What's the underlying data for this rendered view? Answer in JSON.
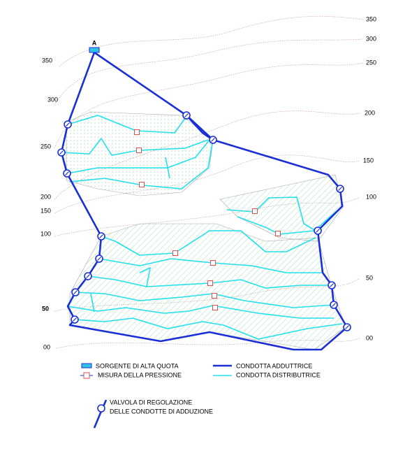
{
  "source_label": "A",
  "contours_left": [
    "350",
    "300",
    "250",
    "200",
    "150",
    "100",
    "50",
    "00"
  ],
  "contours_right": [
    "350",
    "300",
    "250",
    "200",
    "150",
    "100",
    "50",
    "00"
  ],
  "legend": {
    "source": "SORGENTE DI ALTA QUOTA",
    "pressure": "MISURA DELLA PRESSIONE",
    "main_pipe": "CONDOTTA ADDUTTRICE",
    "distribution_pipe": "CONDOTTA DISTRIBUTRICE",
    "valve_line1": "VALVOLA DI REGOLAZIONE",
    "valve_line2": "DELLE CONDOTTE DI ADDUZIONE"
  }
}
